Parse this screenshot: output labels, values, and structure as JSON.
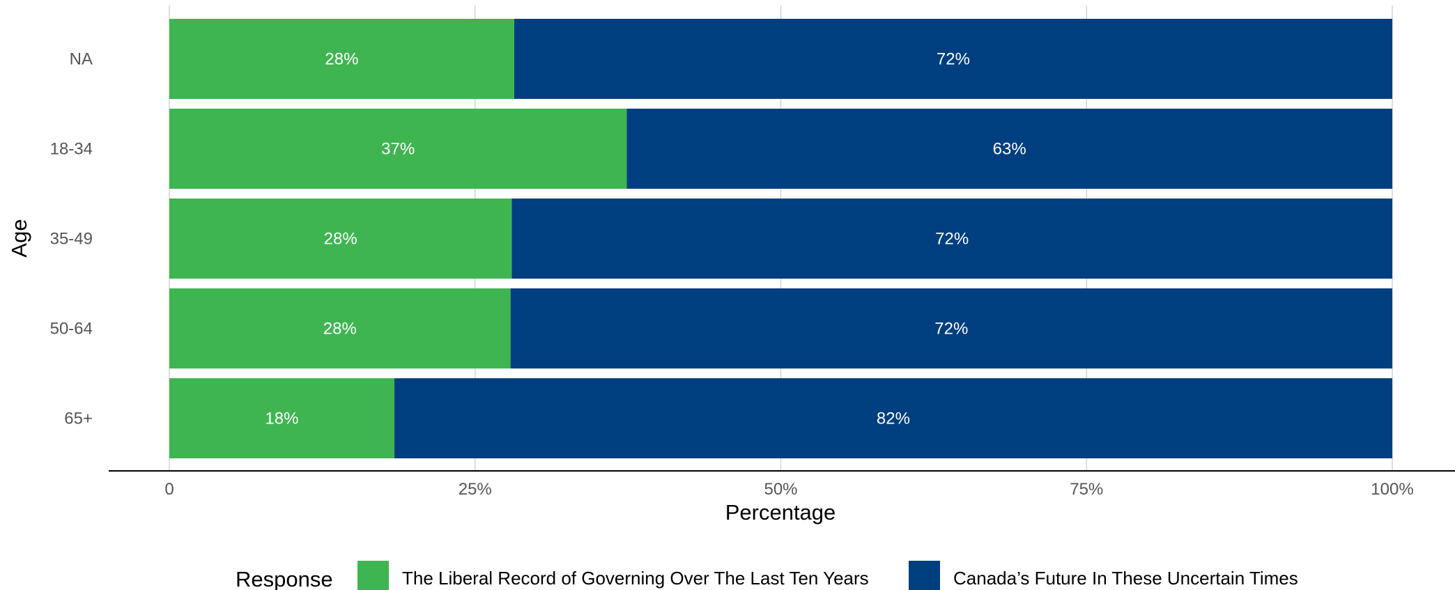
{
  "chart_data": {
    "type": "bar",
    "orientation": "horizontal",
    "stacked": true,
    "categories": [
      "NA",
      "18-34",
      "35-49",
      "50-64",
      "65+"
    ],
    "series": [
      {
        "name": "The Liberal Record of Governing Over The Last Ten Years",
        "color": "#3fb552",
        "values": [
          28.2,
          37.4,
          28.0,
          27.9,
          18.4
        ],
        "labels": [
          "28%",
          "37%",
          "28%",
          "28%",
          "18%"
        ]
      },
      {
        "name": "Canada’s Future In These Uncertain Times",
        "color": "#003f7f",
        "values": [
          71.8,
          62.6,
          72.0,
          72.1,
          81.6
        ],
        "labels": [
          "72%",
          "63%",
          "72%",
          "72%",
          "82%"
        ]
      }
    ],
    "xlabel": "Percentage",
    "ylabel": "Age",
    "xlim": [
      0,
      100
    ],
    "xticks": [
      0,
      25,
      50,
      75,
      100
    ],
    "xtick_labels": [
      "0",
      "25%",
      "50%",
      "75%",
      "100%"
    ],
    "grid": "vertical",
    "legend": {
      "title": "Response",
      "placement": "bottom"
    }
  }
}
